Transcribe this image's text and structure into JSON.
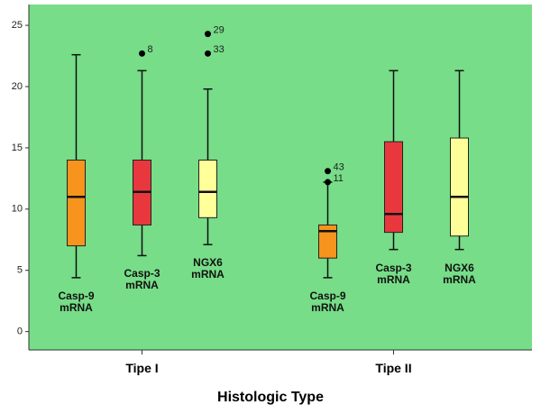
{
  "chart_data": {
    "type": "box",
    "x_label": "Histologic Type",
    "categories": [
      "Tipe I",
      "Tipe II"
    ],
    "ylim": [
      -1.5,
      26.7
    ],
    "yticks": [
      0,
      5,
      10,
      15,
      20,
      25
    ],
    "series": [
      {
        "name": "Casp-9 mRNA",
        "color": "#f7941d",
        "values": [
          {
            "min": 4.4,
            "q1": 7.0,
            "median": 11.0,
            "q3": 14.0,
            "max": 22.6,
            "outliers": []
          },
          {
            "min": 4.4,
            "q1": 6.0,
            "median": 8.2,
            "q3": 8.7,
            "max": 12.2,
            "outliers": [
              {
                "value": 13.1,
                "label": "43"
              },
              {
                "value": 12.2,
                "label": "11"
              }
            ]
          }
        ]
      },
      {
        "name": "Casp-3 mRNA",
        "color": "#e8383d",
        "values": [
          {
            "min": 6.2,
            "q1": 8.7,
            "median": 11.4,
            "q3": 14.0,
            "max": 21.3,
            "outliers": [
              {
                "value": 22.7,
                "label": "8"
              }
            ]
          },
          {
            "min": 6.7,
            "q1": 8.1,
            "median": 9.6,
            "q3": 15.5,
            "max": 21.3,
            "outliers": []
          }
        ]
      },
      {
        "name": "NGX6 mRNA",
        "color": "#ffff99",
        "values": [
          {
            "min": 7.1,
            "q1": 9.3,
            "median": 11.4,
            "q3": 14.0,
            "max": 19.8,
            "outliers": [
              {
                "value": 24.3,
                "label": "29"
              },
              {
                "value": 22.7,
                "label": "33"
              }
            ]
          },
          {
            "min": 6.7,
            "q1": 7.8,
            "median": 11.0,
            "q3": 15.8,
            "max": 21.3,
            "outliers": []
          }
        ]
      }
    ]
  }
}
